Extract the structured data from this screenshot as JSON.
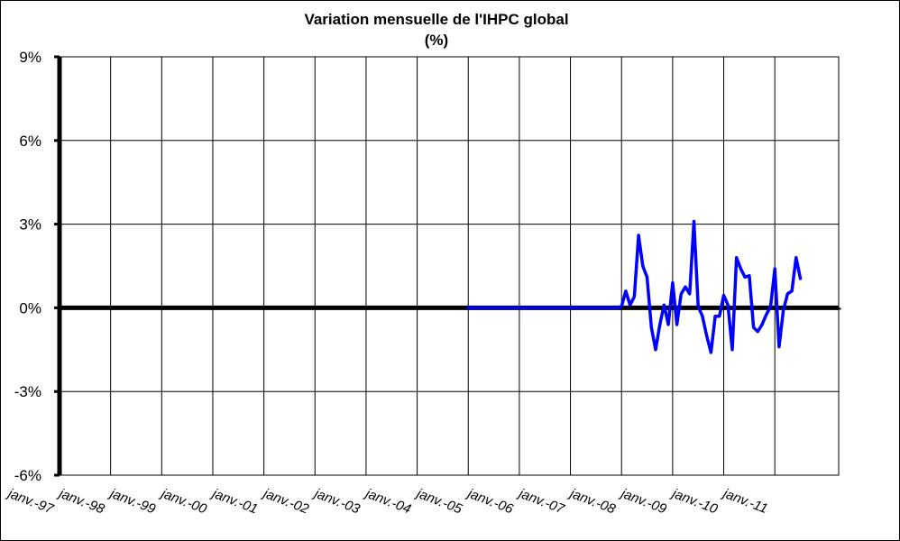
{
  "chart_data": {
    "type": "line",
    "title": "Variation mensuelle de l'IHPC global",
    "subtitle": "(%)",
    "xlabel": "",
    "ylabel": "",
    "ylim": [
      -6,
      9
    ],
    "yticks": [
      9,
      6,
      3,
      0,
      -3,
      -6
    ],
    "ytick_labels": [
      "9%",
      "6%",
      "3%",
      "0%",
      "-3%",
      "-6%"
    ],
    "xlim": [
      "1997-01",
      "2012-04"
    ],
    "xticks": [
      "1997-01",
      "1998-01",
      "1999-01",
      "2000-01",
      "2001-01",
      "2002-01",
      "2003-01",
      "2004-01",
      "2005-01",
      "2006-01",
      "2007-01",
      "2008-01",
      "2009-01",
      "2010-01",
      "2011-01"
    ],
    "xtick_labels": [
      "janv.-97",
      "janv.-98",
      "janv.-99",
      "janv.-00",
      "janv.-01",
      "janv.-02",
      "janv.-03",
      "janv.-04",
      "janv.-05",
      "janv.-06",
      "janv.-07",
      "janv.-08",
      "janv.-09",
      "janv.-10",
      "janv.-11"
    ],
    "grid": true,
    "legend": "none",
    "colors": {
      "series": "#0000ff",
      "zero_line": "#000000",
      "grid": "#000000"
    },
    "series": [
      {
        "x": [
          "2005-01",
          "2005-02",
          "2005-03",
          "2005-04",
          "2005-05",
          "2005-06",
          "2005-07",
          "2005-08",
          "2005-09",
          "2005-10",
          "2005-11",
          "2005-12",
          "2006-01",
          "2006-02",
          "2006-03",
          "2006-04",
          "2006-05",
          "2006-06",
          "2006-07",
          "2006-08",
          "2006-09",
          "2006-10",
          "2006-11",
          "2006-12",
          "2007-01",
          "2007-02",
          "2007-03",
          "2007-04",
          "2007-05",
          "2007-06",
          "2007-07",
          "2007-08",
          "2007-09",
          "2007-10",
          "2007-11",
          "2007-12",
          "2008-01",
          "2008-02",
          "2008-03",
          "2008-04",
          "2008-05",
          "2008-06",
          "2008-07",
          "2008-08",
          "2008-09",
          "2008-10",
          "2008-11",
          "2008-12",
          "2009-01",
          "2009-02",
          "2009-03",
          "2009-04",
          "2009-05",
          "2009-06",
          "2009-07",
          "2009-08",
          "2009-09",
          "2009-10",
          "2009-11",
          "2009-12",
          "2010-01",
          "2010-02",
          "2010-03",
          "2010-04",
          "2010-05",
          "2010-06",
          "2010-07",
          "2010-08",
          "2010-09",
          "2010-10",
          "2010-11",
          "2010-12",
          "2011-01",
          "2011-02",
          "2011-03",
          "2011-04",
          "2011-05",
          "2011-06",
          "2011-07"
        ],
        "y": [
          0,
          0,
          0,
          0,
          0,
          0,
          0,
          0,
          0,
          0,
          0,
          0,
          0,
          0,
          0,
          0,
          0,
          0,
          0,
          0,
          0,
          0,
          0,
          0,
          0,
          0,
          0,
          0,
          0,
          0,
          0,
          0,
          0,
          0,
          0,
          0,
          0.05,
          0.6,
          0.1,
          0.4,
          2.6,
          1.5,
          1.1,
          -0.7,
          -1.5,
          -0.6,
          0.1,
          -0.6,
          0.9,
          -0.6,
          0.5,
          0.75,
          0.5,
          3.1,
          0.05,
          -0.3,
          -1.0,
          -1.6,
          -0.3,
          -0.3,
          0.45,
          0.1,
          -1.5,
          1.8,
          1.4,
          1.1,
          1.15,
          -0.7,
          -0.85,
          -0.6,
          -0.25,
          0.05,
          1.4,
          -1.4,
          -0.1,
          0.5,
          0.6,
          1.8,
          1.05
        ]
      }
    ]
  }
}
